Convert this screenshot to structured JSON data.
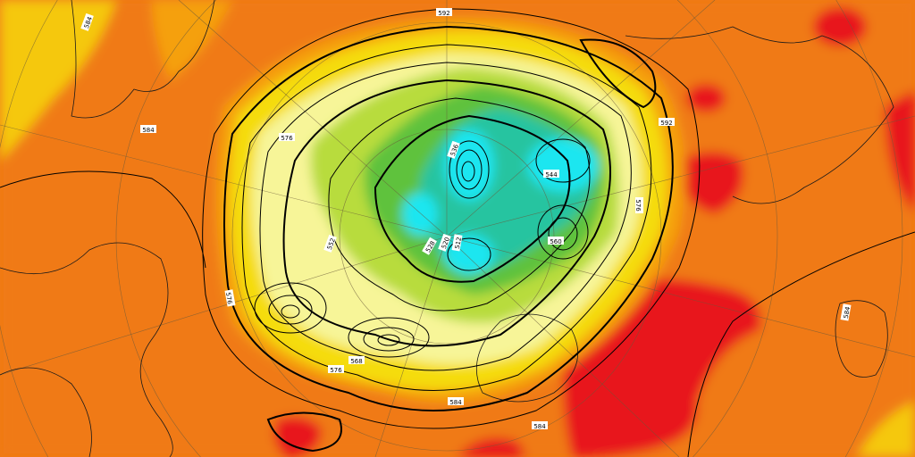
{
  "map": {
    "projection": "polar-stereographic",
    "field_fill": "500 hPa geopotential height",
    "colors": {
      "very_warm": "#e8141c",
      "warm": "#f07a12",
      "orange_light": "#f5a00c",
      "yellow": "#f5dc0a",
      "light_yellow": "#f7f598",
      "green_light": "#b8dc3c",
      "green": "#5fc23c",
      "teal": "#28c4a0",
      "cyan": "#1ee6f0"
    },
    "contour_labels": [
      {
        "text": "592"
      },
      {
        "text": "584"
      },
      {
        "text": "584"
      },
      {
        "text": "576"
      },
      {
        "text": "576"
      },
      {
        "text": "576"
      },
      {
        "text": "568"
      },
      {
        "text": "560"
      },
      {
        "text": "552"
      },
      {
        "text": "544"
      },
      {
        "text": "536"
      },
      {
        "text": "528"
      },
      {
        "text": "520"
      },
      {
        "text": "512"
      },
      {
        "text": "584"
      },
      {
        "text": "592"
      },
      {
        "text": "576"
      },
      {
        "text": "584"
      },
      {
        "text": "584"
      }
    ]
  }
}
